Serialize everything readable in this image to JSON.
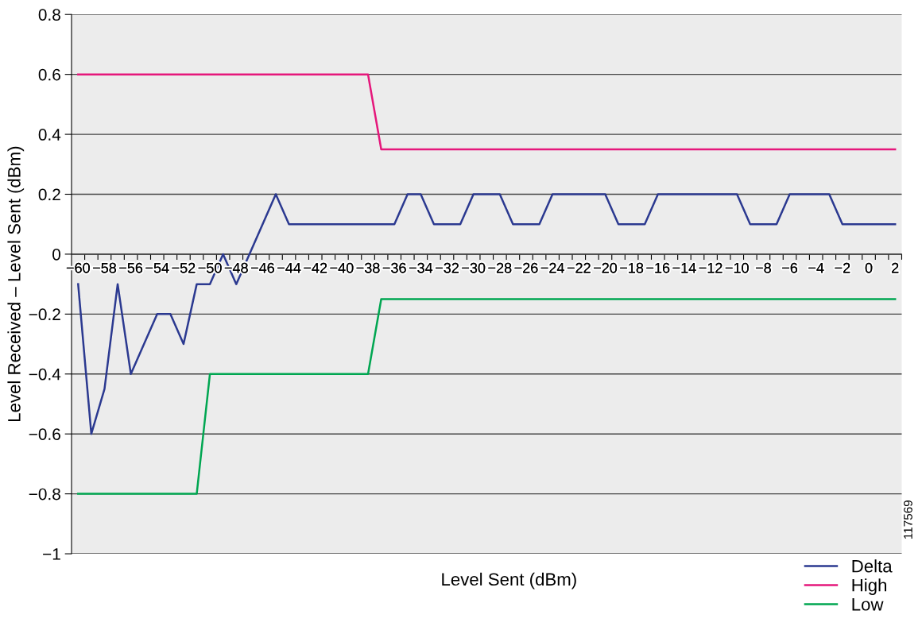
{
  "chart_data": {
    "type": "line",
    "xlabel": "Level Sent (dBm)",
    "ylabel": "Level Received – Level Sent (dBm)",
    "categories": [
      "−60",
      null,
      "−58",
      null,
      "−56",
      null,
      "−54",
      null,
      "−52",
      null,
      "−50",
      null,
      "−48",
      null,
      "−46",
      null,
      "−44",
      null,
      "−42",
      null,
      "−40",
      null,
      "−38",
      null,
      "−36",
      null,
      "−34",
      null,
      "−32",
      null,
      "−30",
      null,
      "−28",
      null,
      "−26",
      null,
      "−24",
      null,
      "−22",
      null,
      "−20",
      null,
      "−18",
      null,
      "−16",
      null,
      "−14",
      null,
      "−12",
      null,
      "−10",
      null,
      "−8",
      null,
      "−6",
      null,
      "−4",
      null,
      "−2",
      null,
      "0",
      null,
      "2"
    ],
    "series": [
      {
        "name": "Delta",
        "color": "#2b3990",
        "values": [
          -0.1,
          -0.6,
          -0.45,
          -0.1,
          -0.4,
          -0.3,
          -0.2,
          -0.2,
          -0.3,
          -0.1,
          -0.1,
          0,
          -0.1,
          0,
          0.1,
          0.2,
          0.1,
          0.1,
          0.1,
          0.1,
          0.1,
          0.1,
          0.1,
          0.1,
          0.1,
          0.2,
          0.2,
          0.1,
          0.1,
          0.1,
          0.2,
          0.2,
          0.2,
          0.1,
          0.1,
          0.1,
          0.2,
          0.2,
          0.2,
          0.2,
          0.2,
          0.1,
          0.1,
          0.1,
          0.2,
          0.2,
          0.2,
          0.2,
          0.2,
          0.2,
          0.2,
          0.1,
          0.1,
          0.1,
          0.2,
          0.2,
          0.2,
          0.2,
          0.1,
          0.1,
          0.1,
          0.1,
          0.1
        ]
      },
      {
        "name": "High",
        "color": "#e5177b",
        "values": [
          0.6,
          0.6,
          0.6,
          0.6,
          0.6,
          0.6,
          0.6,
          0.6,
          0.6,
          0.6,
          0.6,
          0.6,
          0.6,
          0.6,
          0.6,
          0.6,
          0.6,
          0.6,
          0.6,
          0.6,
          0.6,
          0.6,
          0.6,
          0.35,
          0.35,
          0.35,
          0.35,
          0.35,
          0.35,
          0.35,
          0.35,
          0.35,
          0.35,
          0.35,
          0.35,
          0.35,
          0.35,
          0.35,
          0.35,
          0.35,
          0.35,
          0.35,
          0.35,
          0.35,
          0.35,
          0.35,
          0.35,
          0.35,
          0.35,
          0.35,
          0.35,
          0.35,
          0.35,
          0.35,
          0.35,
          0.35,
          0.35,
          0.35,
          0.35,
          0.35,
          0.35,
          0.35,
          0.35
        ]
      },
      {
        "name": "Low",
        "color": "#00a651",
        "values": [
          -0.8,
          -0.8,
          -0.8,
          -0.8,
          -0.8,
          -0.8,
          -0.8,
          -0.8,
          -0.8,
          -0.8,
          -0.4,
          -0.4,
          -0.4,
          -0.4,
          -0.4,
          -0.4,
          -0.4,
          -0.4,
          -0.4,
          -0.4,
          -0.4,
          -0.4,
          -0.4,
          -0.15,
          -0.15,
          -0.15,
          -0.15,
          -0.15,
          -0.15,
          -0.15,
          -0.15,
          -0.15,
          -0.15,
          -0.15,
          -0.15,
          -0.15,
          -0.15,
          -0.15,
          -0.15,
          -0.15,
          -0.15,
          -0.15,
          -0.15,
          -0.15,
          -0.15,
          -0.15,
          -0.15,
          -0.15,
          -0.15,
          -0.15,
          -0.15,
          -0.15,
          -0.15,
          -0.15,
          -0.15,
          -0.15,
          -0.15,
          -0.15,
          -0.15,
          -0.15,
          -0.15,
          -0.15,
          -0.15
        ]
      }
    ],
    "ylim": [
      -1,
      0.8
    ],
    "yticks": [
      {
        "value": -1,
        "label": "−1"
      },
      {
        "value": -0.8,
        "label": "−0.8"
      },
      {
        "value": -0.6,
        "label": "−0.6"
      },
      {
        "value": -0.4,
        "label": "−0.4"
      },
      {
        "value": -0.2,
        "label": "−0.2"
      },
      0,
      0.2,
      0.4,
      0.6,
      0.8
    ],
    "grid": "y",
    "legend": "bottom right",
    "marker": "none",
    "line_style": "solid",
    "annotations": [
      "117569"
    ]
  }
}
